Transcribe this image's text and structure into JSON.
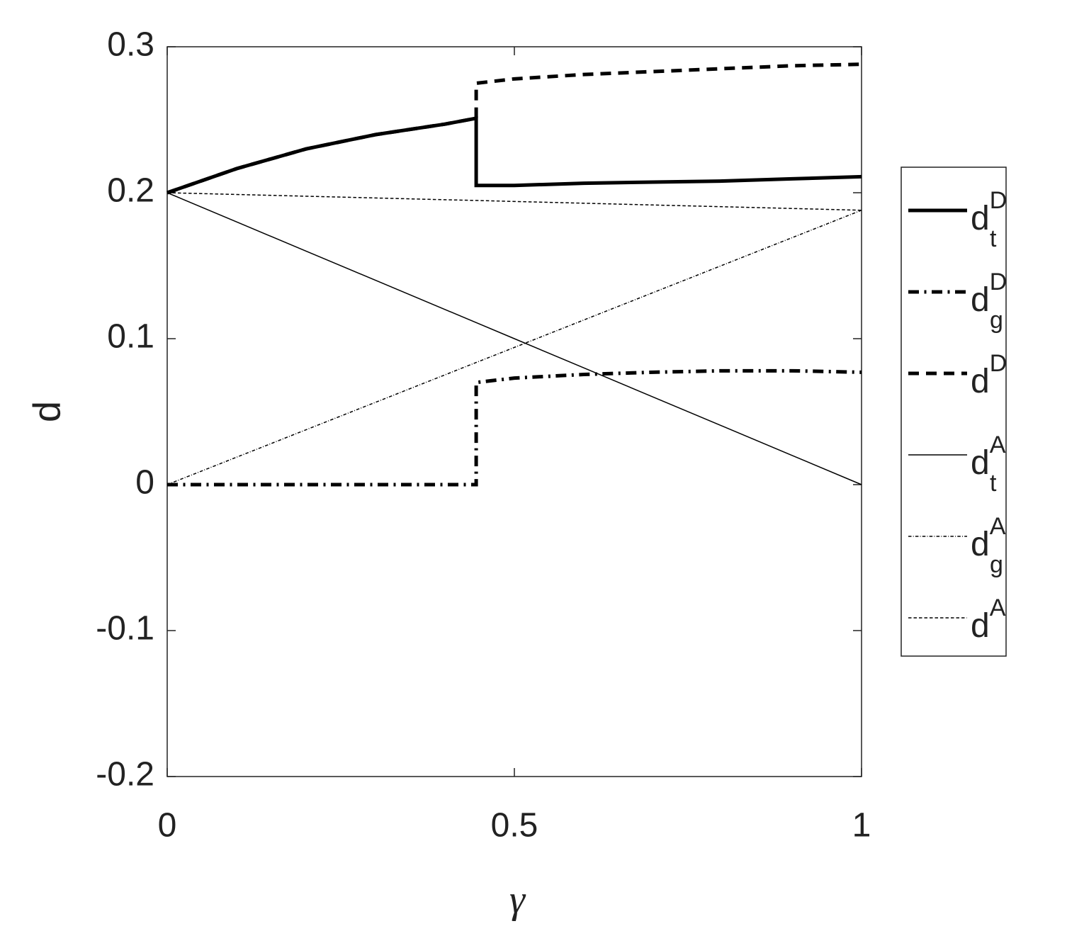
{
  "chart_data": {
    "type": "line",
    "xlabel": "γ",
    "ylabel": "d",
    "x": [
      0,
      0.1,
      0.2,
      0.3,
      0.4,
      0.445,
      0.445,
      0.5,
      0.6,
      0.7,
      0.8,
      0.9,
      1
    ],
    "xlim": [
      0,
      1
    ],
    "xticks": [
      0,
      0.5,
      1
    ],
    "ylim": [
      -0.2,
      0.3
    ],
    "yticks": [
      -0.2,
      -0.1,
      0,
      0.1,
      0.2,
      0.3
    ],
    "grid": false,
    "legend": "outside-right",
    "series": [
      {
        "name": "d_t^D",
        "color": "#000000",
        "style": "solid",
        "width": 5,
        "values": [
          0.2,
          0.2165,
          0.23,
          0.2398,
          0.247,
          0.251,
          0.205,
          0.205,
          0.2065,
          0.2073,
          0.208,
          0.2095,
          0.211
        ]
      },
      {
        "name": "d_g^D",
        "color": "#000000",
        "style": "dashdot",
        "width": 5,
        "values": [
          0,
          0,
          0,
          0,
          0,
          0,
          0.07,
          0.073,
          0.0755,
          0.077,
          0.078,
          0.078,
          0.077
        ]
      },
      {
        "name": "d^D",
        "color": "#000000",
        "style": "dashed",
        "width": 5,
        "values": [
          0.2,
          0.2165,
          0.23,
          0.2398,
          0.247,
          0.251,
          0.275,
          0.278,
          0.281,
          0.283,
          0.285,
          0.287,
          0.288
        ]
      },
      {
        "name": "d_t^A",
        "color": "#000000",
        "style": "solid",
        "width": 1.5,
        "values": [
          0.2,
          0.18,
          0.16,
          0.14,
          0.12,
          0.111,
          0.111,
          0.1,
          0.08,
          0.06,
          0.04,
          0.02,
          0
        ]
      },
      {
        "name": "d_g^A",
        "color": "#000000",
        "style": "dashdot",
        "width": 1.5,
        "values": [
          0,
          0.0188,
          0.0376,
          0.0564,
          0.0752,
          0.0837,
          0.0837,
          0.094,
          0.1128,
          0.1316,
          0.1504,
          0.1692,
          0.188
        ]
      },
      {
        "name": "d^A",
        "color": "#000000",
        "style": "dashed",
        "width": 1.5,
        "values": [
          0.2,
          0.1988,
          0.1976,
          0.1964,
          0.1952,
          0.1947,
          0.1947,
          0.194,
          0.1928,
          0.1916,
          0.1904,
          0.1892,
          0.188
        ]
      }
    ]
  }
}
